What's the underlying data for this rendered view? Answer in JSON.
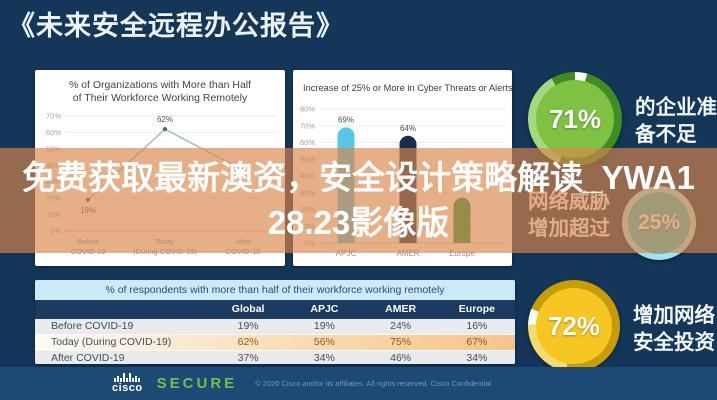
{
  "app": {
    "title": "《未来安全远程办公报告》"
  },
  "overlay": {
    "line1": "免费获取最新澳资，安全设计策略解读_YWA1",
    "line2": "28.23影像版",
    "full_text": "免费获取最新澳资，安全设计策略解读_YWA128.23影像版",
    "background": "#DA864B"
  },
  "stats": [
    {
      "value": "71%",
      "label_lines": [
        "的企业准",
        "备不足"
      ],
      "fill": "#7fc143",
      "ring": "#3e8e22",
      "ring_light": "#a6d97e"
    },
    {
      "value": "25%",
      "label_lines": [
        "网络威胁",
        "增加超过"
      ],
      "fill": "#2fc1d3",
      "ring": "#9fe4ea",
      "ring_light": "#c9f0f4"
    },
    {
      "value": "72%",
      "label_lines": [
        "增加网络",
        "安全投资"
      ],
      "fill": "#f6c723",
      "ring": "#c79c04",
      "ring_light": "#f3dc6e"
    }
  ],
  "chart_data": [
    {
      "type": "line",
      "title": "% of Organizations with More than Half of Their Workforce Working Remotely",
      "title_lines": [
        "% of Organizations with More than Half",
        "of Their Workforce Working Remotely"
      ],
      "categories": [
        "Before COVID-19",
        "Today (During COVID-19)",
        "After COVID-19"
      ],
      "categories_lines": [
        [
          "Before",
          "COVID-19"
        ],
        [
          "Today",
          "(During COVID-19)"
        ],
        [
          "After",
          "COVID-19"
        ]
      ],
      "values": [
        19,
        62,
        37
      ],
      "point_labels": [
        "19%",
        "62%",
        ""
      ],
      "ylim": [
        0,
        70
      ],
      "yticks": [
        0,
        10,
        20,
        30,
        40,
        50,
        60,
        70
      ],
      "line_color": "#a3c9a8",
      "grid": true,
      "legend": "none"
    },
    {
      "type": "bar",
      "title": "Increase of 25% or More in Cyber Threats or Alerts",
      "categories": [
        "APJC",
        "AMER",
        "Europe"
      ],
      "values": [
        69,
        64,
        27
      ],
      "bar_labels": [
        "69%",
        "64%",
        ""
      ],
      "colors": [
        "#56c7e8",
        "#15304d",
        "#189a4a"
      ],
      "ylim": [
        0,
        80
      ],
      "yticks": [
        0,
        10,
        20,
        30,
        40,
        50,
        60,
        70,
        80
      ],
      "grid": true,
      "legend": "none"
    },
    {
      "type": "table",
      "title": "% of respondents with more than half of their workforce working remotely",
      "headers": [
        "",
        "Global",
        "APJC",
        "AMER",
        "Europe"
      ],
      "rows": [
        {
          "label": "Before COVID-19",
          "values": [
            "19%",
            "19%",
            "24%",
            "16%"
          ],
          "highlight": false
        },
        {
          "label": "Today (During COVID-19)",
          "values": [
            "62%",
            "56%",
            "75%",
            "67%"
          ],
          "highlight": true
        },
        {
          "label": "After COVID-19",
          "values": [
            "37%",
            "34%",
            "46%",
            "34%"
          ],
          "highlight": false
        }
      ]
    }
  ],
  "footer": {
    "brand": "cisco",
    "product": "SECURE",
    "copyright": "© 2020 Cisco and/or its affiliates. All rights reserved. Cisco Confidential"
  }
}
